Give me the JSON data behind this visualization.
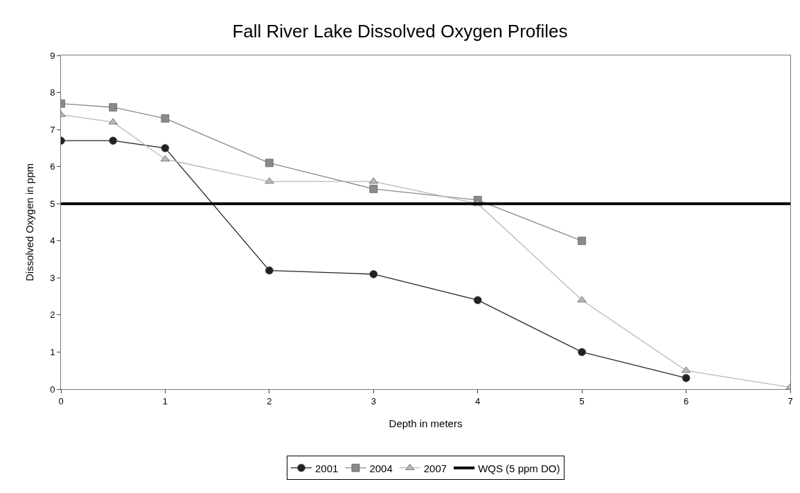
{
  "chart_data": {
    "type": "line",
    "title": "Fall River Lake Dissolved Oxygen Profiles",
    "xlabel": "Depth in meters",
    "ylabel": "Dissolved Oxygen in ppm",
    "xlim": [
      0,
      7
    ],
    "xticks": [
      0,
      1,
      2,
      3,
      4,
      5,
      6,
      7
    ],
    "ylim": [
      0,
      9
    ],
    "yticks": [
      0,
      1,
      2,
      3,
      4,
      5,
      6,
      7,
      8,
      9
    ],
    "grid": false,
    "legend": "bottom",
    "series": [
      {
        "name": "2001",
        "color": "#222222",
        "marker": "circle",
        "x": [
          0,
          0.5,
          1,
          2,
          3,
          4,
          5,
          6
        ],
        "values": [
          6.7,
          6.7,
          6.5,
          3.2,
          3.1,
          2.4,
          1.0,
          0.3
        ]
      },
      {
        "name": "2004",
        "color": "#8a8a8a",
        "marker": "square",
        "x": [
          0,
          0.5,
          1,
          2,
          3,
          4,
          5
        ],
        "values": [
          7.7,
          7.6,
          7.3,
          6.1,
          5.4,
          5.1,
          4.0
        ]
      },
      {
        "name": "2007",
        "color": "#b8b8b8",
        "marker": "triangle",
        "x": [
          0,
          0.5,
          1,
          2,
          3,
          4,
          5,
          6,
          7
        ],
        "values": [
          7.4,
          7.2,
          6.2,
          5.6,
          5.6,
          5.0,
          2.4,
          0.5,
          0.05
        ]
      },
      {
        "name": "WQS (5 ppm DO)",
        "color": "#000000",
        "marker": "none",
        "x": [
          0,
          7
        ],
        "values": [
          5,
          5
        ]
      }
    ]
  }
}
